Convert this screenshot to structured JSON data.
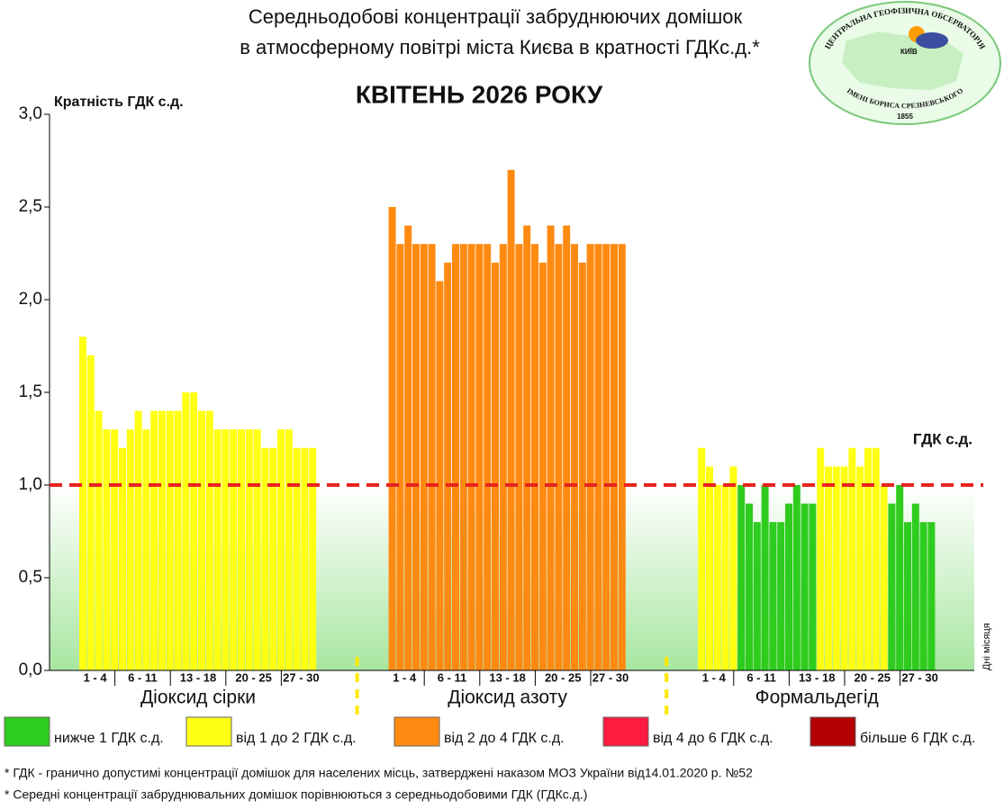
{
  "chart_data": {
    "type": "bar",
    "title_lines": [
      "Середньодобові концентрації забруднюючих домішок",
      "в атмосферному повітрі міста Києва в кратності ГДКс.д.*"
    ],
    "subtitle": "КВІТЕНЬ 2026 РОКУ",
    "ylabel": "Кратність ГДК с.д.",
    "xlabel": "Дні місяця",
    "ylim": [
      0,
      3
    ],
    "yticks": [
      {
        "value": 0,
        "label": "0,0"
      },
      {
        "value": 0.5,
        "label": "0,5"
      },
      {
        "value": 1,
        "label": "1,0"
      },
      {
        "value": 1.5,
        "label": "1,5"
      },
      {
        "value": 2,
        "label": "2,0"
      },
      {
        "value": 2.5,
        "label": "2,5"
      },
      {
        "value": 3,
        "label": "3,0"
      }
    ],
    "threshold": {
      "value": 1,
      "label": "ГДК с.д.",
      "color": "#e8231f"
    },
    "day_labels": [
      "1 - 4",
      "6 - 11",
      "13 - 18",
      "20 - 25",
      "27 - 30"
    ],
    "series": [
      {
        "name": "Діоксид сірки",
        "values": [
          1.8,
          1.7,
          1.4,
          1.3,
          1.3,
          1.2,
          1.3,
          1.4,
          1.3,
          1.4,
          1.4,
          1.4,
          1.4,
          1.5,
          1.5,
          1.4,
          1.4,
          1.3,
          1.3,
          1.3,
          1.3,
          1.3,
          1.3,
          1.2,
          1.2,
          1.3,
          1.3,
          1.2,
          1.2,
          1.2
        ],
        "colors": [
          "#ffff14",
          "#ffff14",
          "#ffff14",
          "#ffff14",
          "#ffff14",
          "#ffff14",
          "#ffff14",
          "#ffff14",
          "#ffff14",
          "#ffff14",
          "#ffff14",
          "#ffff14",
          "#ffff14",
          "#ffff14",
          "#ffff14",
          "#ffff14",
          "#ffff14",
          "#ffff14",
          "#ffff14",
          "#ffff14",
          "#ffff14",
          "#ffff14",
          "#ffff14",
          "#ffff14",
          "#ffff14",
          "#ffff14",
          "#ffff14",
          "#ffff14",
          "#ffff14",
          "#ffff14"
        ]
      },
      {
        "name": "Діоксид азоту",
        "values": [
          2.5,
          2.3,
          2.4,
          2.3,
          2.3,
          2.3,
          2.1,
          2.2,
          2.3,
          2.3,
          2.3,
          2.3,
          2.3,
          2.2,
          2.3,
          2.7,
          2.3,
          2.4,
          2.3,
          2.2,
          2.4,
          2.3,
          2.4,
          2.3,
          2.2,
          2.3,
          2.3,
          2.3,
          2.3,
          2.3
        ],
        "colors": [
          "#ff8a12",
          "#ff8a12",
          "#ff8a12",
          "#ff8a12",
          "#ff8a12",
          "#ff8a12",
          "#ff8a12",
          "#ff8a12",
          "#ff8a12",
          "#ff8a12",
          "#ff8a12",
          "#ff8a12",
          "#ff8a12",
          "#ff8a12",
          "#ff8a12",
          "#ff8a12",
          "#ff8a12",
          "#ff8a12",
          "#ff8a12",
          "#ff8a12",
          "#ff8a12",
          "#ff8a12",
          "#ff8a12",
          "#ff8a12",
          "#ff8a12",
          "#ff8a12",
          "#ff8a12",
          "#ff8a12",
          "#ff8a12",
          "#ff8a12"
        ]
      },
      {
        "name": "Формальдегід",
        "values": [
          1.2,
          1.1,
          1.0,
          1.0,
          1.1,
          1.0,
          0.9,
          0.8,
          1.0,
          0.8,
          0.8,
          0.9,
          1.0,
          0.9,
          0.9,
          1.2,
          1.1,
          1.1,
          1.1,
          1.2,
          1.1,
          1.2,
          1.2,
          1.0,
          0.9,
          1.0,
          0.8,
          0.9,
          0.8,
          0.8
        ],
        "colors": [
          "#ffff14",
          "#ffff14",
          "#ffff14",
          "#ffff14",
          "#ffff14",
          "#2ecc1e",
          "#2ecc1e",
          "#2ecc1e",
          "#2ecc1e",
          "#2ecc1e",
          "#2ecc1e",
          "#2ecc1e",
          "#2ecc1e",
          "#2ecc1e",
          "#2ecc1e",
          "#ffff14",
          "#ffff14",
          "#ffff14",
          "#ffff14",
          "#ffff14",
          "#ffff14",
          "#ffff14",
          "#ffff14",
          "#ffff14",
          "#2ecc1e",
          "#2ecc1e",
          "#2ecc1e",
          "#2ecc1e",
          "#2ecc1e",
          "#2ecc1e"
        ]
      }
    ],
    "legend": [
      {
        "label": "нижче 1 ГДК с.д.",
        "color": "#2ecc1e"
      },
      {
        "label": "від 1 до 2 ГДК с.д.",
        "color": "#ffff14"
      },
      {
        "label": "від 2 до 4 ГДК с.д.",
        "color": "#ff8a12"
      },
      {
        "label": "від 4 до 6 ГДК с.д.",
        "color": "#ff1a40"
      },
      {
        "label": "більше 6 ГДК с.д.",
        "color": "#b30000"
      }
    ]
  },
  "logo": {
    "top": "ЦЕНТРАЛЬНА ГЕОФІЗИЧНА ОБСЕРВАТОРІЯ",
    "city": "КИЇВ",
    "bottom": "ІМЕНІ БОРИСА СРЕЗНЕВСЬКОГО",
    "year": "1855"
  },
  "footnotes": [
    "* ГДК - гранично допустимі концентрації домішок для населених місць, затверджені наказом МОЗ України від14.01.2020 р. №52",
    "* Середні концентрації забруднювальних домішок порівнюються з середньодобовими  ГДК (ГДКс.д.)"
  ]
}
